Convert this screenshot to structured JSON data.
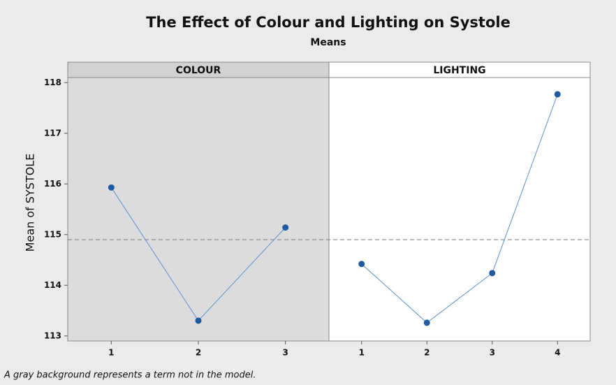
{
  "chart_data": {
    "type": "line",
    "title": "The Effect of Colour and Lighting on Systole",
    "subtitle": "Means",
    "y_label": "Mean of SYSTOLE",
    "footnote": "A gray background represents a term not in the model.",
    "ylim": [
      112.9,
      118.1
    ],
    "yticks": [
      113,
      114,
      115,
      116,
      117,
      118
    ],
    "reference_line": 114.9,
    "color": "#5b8fd0",
    "marker_color": "#1f5aa0",
    "panels": [
      {
        "name": "COLOUR",
        "background": "#dcdcdc",
        "categories": [
          "1",
          "2",
          "3"
        ],
        "values": [
          115.93,
          113.3,
          115.14
        ]
      },
      {
        "name": "LIGHTING",
        "background": "#ffffff",
        "categories": [
          "1",
          "2",
          "3",
          "4"
        ],
        "values": [
          114.42,
          113.26,
          114.24,
          117.77
        ]
      }
    ]
  }
}
